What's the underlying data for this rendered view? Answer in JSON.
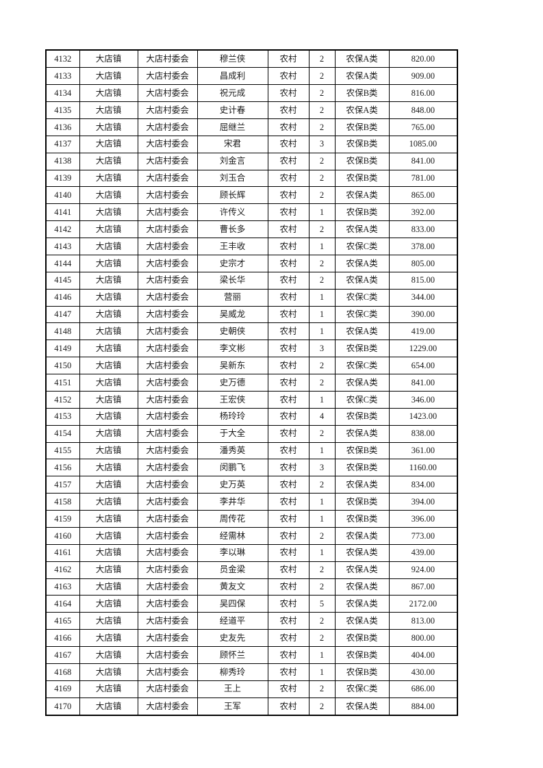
{
  "page": {
    "kind": "printed-table-page"
  },
  "colors": {
    "background": "#ffffff",
    "border": "#000000",
    "text": "#1a1a1a"
  },
  "table": {
    "column_keys": [
      "id",
      "town",
      "village",
      "name",
      "residence",
      "persons",
      "category",
      "amount"
    ],
    "rows": [
      [
        "4132",
        "大店镇",
        "大店村委会",
        "穆兰侠",
        "农村",
        "2",
        "农保A类",
        "820.00"
      ],
      [
        "4133",
        "大店镇",
        "大店村委会",
        "昌成利",
        "农村",
        "2",
        "农保A类",
        "909.00"
      ],
      [
        "4134",
        "大店镇",
        "大店村委会",
        "祝元成",
        "农村",
        "2",
        "农保B类",
        "816.00"
      ],
      [
        "4135",
        "大店镇",
        "大店村委会",
        "史计春",
        "农村",
        "2",
        "农保A类",
        "848.00"
      ],
      [
        "4136",
        "大店镇",
        "大店村委会",
        "屈继兰",
        "农村",
        "2",
        "农保B类",
        "765.00"
      ],
      [
        "4137",
        "大店镇",
        "大店村委会",
        "宋君",
        "农村",
        "3",
        "农保B类",
        "1085.00"
      ],
      [
        "4138",
        "大店镇",
        "大店村委会",
        "刘金言",
        "农村",
        "2",
        "农保B类",
        "841.00"
      ],
      [
        "4139",
        "大店镇",
        "大店村委会",
        "刘玉合",
        "农村",
        "2",
        "农保B类",
        "781.00"
      ],
      [
        "4140",
        "大店镇",
        "大店村委会",
        "顾长辉",
        "农村",
        "2",
        "农保A类",
        "865.00"
      ],
      [
        "4141",
        "大店镇",
        "大店村委会",
        "许传义",
        "农村",
        "1",
        "农保B类",
        "392.00"
      ],
      [
        "4142",
        "大店镇",
        "大店村委会",
        "曹长多",
        "农村",
        "2",
        "农保A类",
        "833.00"
      ],
      [
        "4143",
        "大店镇",
        "大店村委会",
        "王丰收",
        "农村",
        "1",
        "农保C类",
        "378.00"
      ],
      [
        "4144",
        "大店镇",
        "大店村委会",
        "史宗才",
        "农村",
        "2",
        "农保A类",
        "805.00"
      ],
      [
        "4145",
        "大店镇",
        "大店村委会",
        "梁长华",
        "农村",
        "2",
        "农保A类",
        "815.00"
      ],
      [
        "4146",
        "大店镇",
        "大店村委会",
        "营丽",
        "农村",
        "1",
        "农保C类",
        "344.00"
      ],
      [
        "4147",
        "大店镇",
        "大店村委会",
        "吴威龙",
        "农村",
        "1",
        "农保C类",
        "390.00"
      ],
      [
        "4148",
        "大店镇",
        "大店村委会",
        "史朝侠",
        "农村",
        "1",
        "农保A类",
        "419.00"
      ],
      [
        "4149",
        "大店镇",
        "大店村委会",
        "李文彬",
        "农村",
        "3",
        "农保B类",
        "1229.00"
      ],
      [
        "4150",
        "大店镇",
        "大店村委会",
        "吴新东",
        "农村",
        "2",
        "农保C类",
        "654.00"
      ],
      [
        "4151",
        "大店镇",
        "大店村委会",
        "史万德",
        "农村",
        "2",
        "农保A类",
        "841.00"
      ],
      [
        "4152",
        "大店镇",
        "大店村委会",
        "王宏侠",
        "农村",
        "1",
        "农保C类",
        "346.00"
      ],
      [
        "4153",
        "大店镇",
        "大店村委会",
        "杨玲玲",
        "农村",
        "4",
        "农保B类",
        "1423.00"
      ],
      [
        "4154",
        "大店镇",
        "大店村委会",
        "于大全",
        "农村",
        "2",
        "农保A类",
        "838.00"
      ],
      [
        "4155",
        "大店镇",
        "大店村委会",
        "潘秀英",
        "农村",
        "1",
        "农保B类",
        "361.00"
      ],
      [
        "4156",
        "大店镇",
        "大店村委会",
        "闵鹏飞",
        "农村",
        "3",
        "农保B类",
        "1160.00"
      ],
      [
        "4157",
        "大店镇",
        "大店村委会",
        "史万英",
        "农村",
        "2",
        "农保A类",
        "834.00"
      ],
      [
        "4158",
        "大店镇",
        "大店村委会",
        "李井华",
        "农村",
        "1",
        "农保B类",
        "394.00"
      ],
      [
        "4159",
        "大店镇",
        "大店村委会",
        "周传花",
        "农村",
        "1",
        "农保B类",
        "396.00"
      ],
      [
        "4160",
        "大店镇",
        "大店村委会",
        "经需林",
        "农村",
        "2",
        "农保A类",
        "773.00"
      ],
      [
        "4161",
        "大店镇",
        "大店村委会",
        "李以琳",
        "农村",
        "1",
        "农保A类",
        "439.00"
      ],
      [
        "4162",
        "大店镇",
        "大店村委会",
        "员金梁",
        "农村",
        "2",
        "农保A类",
        "924.00"
      ],
      [
        "4163",
        "大店镇",
        "大店村委会",
        "黄友文",
        "农村",
        "2",
        "农保A类",
        "867.00"
      ],
      [
        "4164",
        "大店镇",
        "大店村委会",
        "吴四保",
        "农村",
        "5",
        "农保A类",
        "2172.00"
      ],
      [
        "4165",
        "大店镇",
        "大店村委会",
        "经道平",
        "农村",
        "2",
        "农保A类",
        "813.00"
      ],
      [
        "4166",
        "大店镇",
        "大店村委会",
        "史友先",
        "农村",
        "2",
        "农保B类",
        "800.00"
      ],
      [
        "4167",
        "大店镇",
        "大店村委会",
        "顾怀兰",
        "农村",
        "1",
        "农保B类",
        "404.00"
      ],
      [
        "4168",
        "大店镇",
        "大店村委会",
        "柳秀玲",
        "农村",
        "1",
        "农保B类",
        "430.00"
      ],
      [
        "4169",
        "大店镇",
        "大店村委会",
        "王上",
        "农村",
        "2",
        "农保C类",
        "686.00"
      ],
      [
        "4170",
        "大店镇",
        "大店村委会",
        "王军",
        "农村",
        "2",
        "农保A类",
        "884.00"
      ]
    ]
  }
}
